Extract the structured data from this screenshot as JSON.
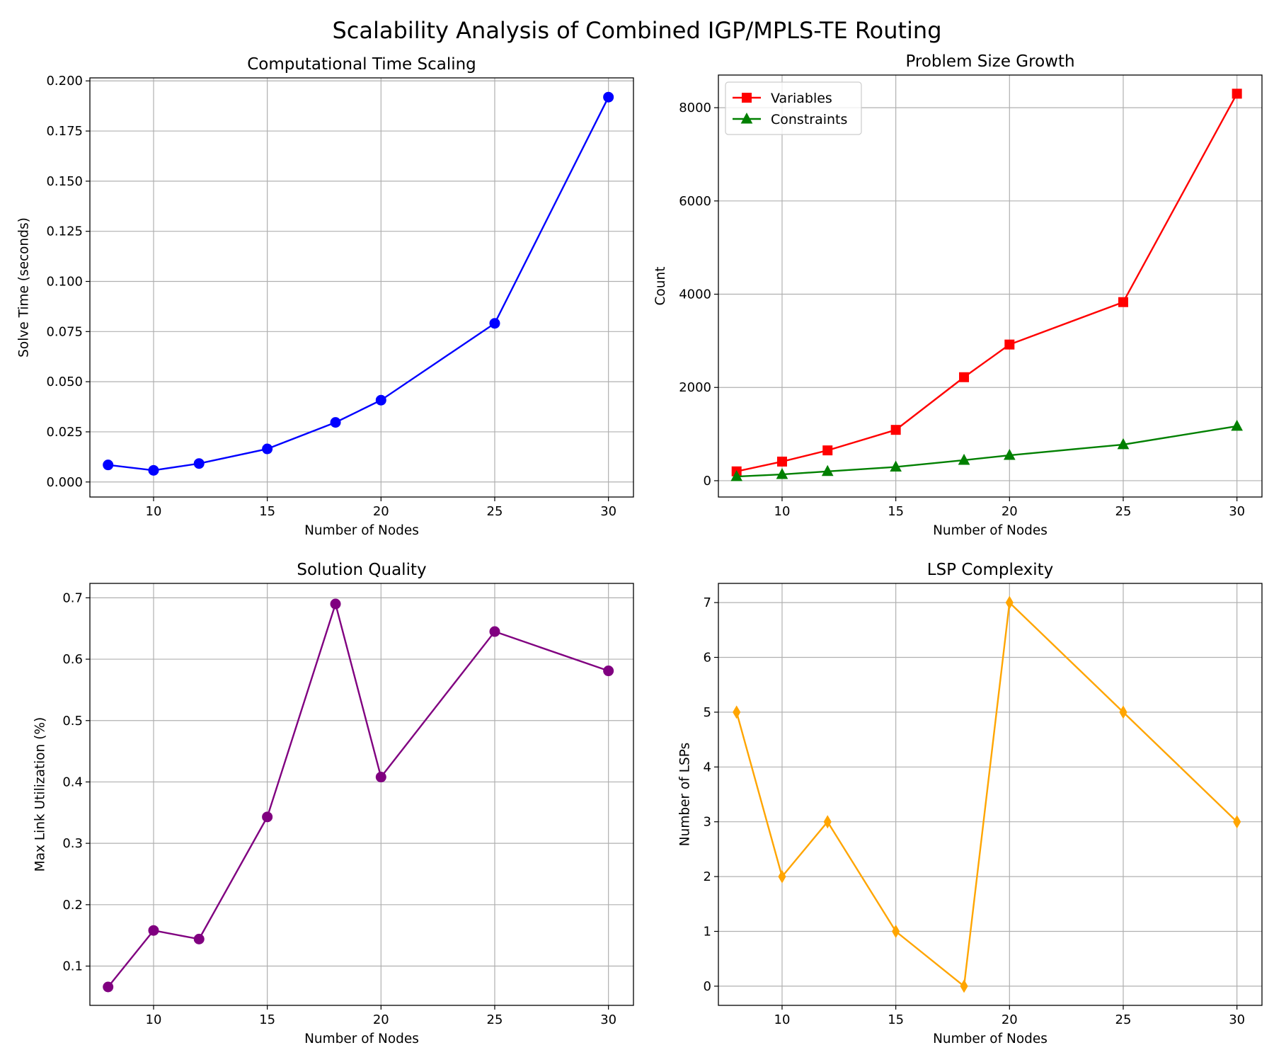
{
  "figure": {
    "title": "Scalability Analysis of Combined IGP/MPLS-TE Routing"
  },
  "chart_data": [
    {
      "type": "line",
      "title": "Computational Time Scaling",
      "xlabel": "Number of Nodes",
      "ylabel": "Solve Time (seconds)",
      "x": [
        8,
        10,
        12,
        15,
        18,
        20,
        25,
        30
      ],
      "xlim": [
        7.2,
        31.1
      ],
      "ylim": [
        -0.0075,
        0.2015
      ],
      "xticks": [
        10,
        15,
        20,
        25,
        30
      ],
      "xticklabels": [
        "10",
        "15",
        "20",
        "25",
        "30"
      ],
      "yticks": [
        0,
        0.025,
        0.05,
        0.075,
        0.1,
        0.125,
        0.15,
        0.175,
        0.2
      ],
      "yticklabels": [
        "0.000",
        "0.025",
        "0.050",
        "0.075",
        "0.100",
        "0.125",
        "0.150",
        "0.175",
        "0.200"
      ],
      "grid": true,
      "series": [
        {
          "color": "#0000ff",
          "marker": "circle",
          "values": [
            0.0085,
            0.0058,
            0.0092,
            0.0165,
            0.0297,
            0.0408,
            0.0791,
            0.1919
          ]
        }
      ]
    },
    {
      "type": "line",
      "title": "Problem Size Growth",
      "xlabel": "Number of Nodes",
      "ylabel": "Count",
      "x": [
        8,
        10,
        12,
        15,
        18,
        20,
        25,
        30
      ],
      "xlim": [
        7.2,
        31.1
      ],
      "ylim": [
        -350,
        8700
      ],
      "xticks": [
        10,
        15,
        20,
        25,
        30
      ],
      "xticklabels": [
        "10",
        "15",
        "20",
        "25",
        "30"
      ],
      "yticks": [
        0,
        2000,
        4000,
        6000,
        8000
      ],
      "yticklabels": [
        "0",
        "2000",
        "4000",
        "6000",
        "8000"
      ],
      "grid": true,
      "legend": "top-left",
      "series": [
        {
          "name": "Variables",
          "color": "#ff0000",
          "marker": "square",
          "values": [
            200,
            410,
            650,
            1090,
            2220,
            2920,
            3830,
            8300
          ]
        },
        {
          "name": "Constraints",
          "color": "#008000",
          "marker": "triangle",
          "values": [
            90,
            135,
            200,
            295,
            440,
            545,
            775,
            1170
          ]
        }
      ]
    },
    {
      "type": "line",
      "title": "Solution Quality",
      "xlabel": "Number of Nodes",
      "ylabel": "Max Link Utilization (%)",
      "x": [
        8,
        10,
        12,
        15,
        18,
        20,
        25,
        30
      ],
      "xlim": [
        7.2,
        31.1
      ],
      "ylim": [
        0.036,
        0.7235
      ],
      "xticks": [
        10,
        15,
        20,
        25,
        30
      ],
      "xticklabels": [
        "10",
        "15",
        "20",
        "25",
        "30"
      ],
      "yticks": [
        0.1,
        0.2,
        0.3,
        0.4,
        0.5,
        0.6,
        0.7
      ],
      "yticklabels": [
        "0.1",
        "0.2",
        "0.3",
        "0.4",
        "0.5",
        "0.6",
        "0.7"
      ],
      "grid": true,
      "series": [
        {
          "color": "#800080",
          "marker": "circle",
          "values": [
            0.066,
            0.158,
            0.144,
            0.343,
            0.69,
            0.408,
            0.645,
            0.581
          ]
        }
      ]
    },
    {
      "type": "line",
      "title": "LSP Complexity",
      "xlabel": "Number of Nodes",
      "ylabel": "Number of LSPs",
      "x": [
        8,
        10,
        12,
        15,
        18,
        20,
        25,
        30
      ],
      "xlim": [
        7.2,
        31.1
      ],
      "ylim": [
        -0.35,
        7.35
      ],
      "xticks": [
        10,
        15,
        20,
        25,
        30
      ],
      "xticklabels": [
        "10",
        "15",
        "20",
        "25",
        "30"
      ],
      "yticks": [
        0,
        1,
        2,
        3,
        4,
        5,
        6,
        7
      ],
      "yticklabels": [
        "0",
        "1",
        "2",
        "3",
        "4",
        "5",
        "6",
        "7"
      ],
      "grid": true,
      "series": [
        {
          "color": "#ffa500",
          "marker": "thin-diamond",
          "values": [
            5,
            2,
            3,
            1,
            0,
            7,
            5,
            3
          ]
        }
      ]
    }
  ]
}
